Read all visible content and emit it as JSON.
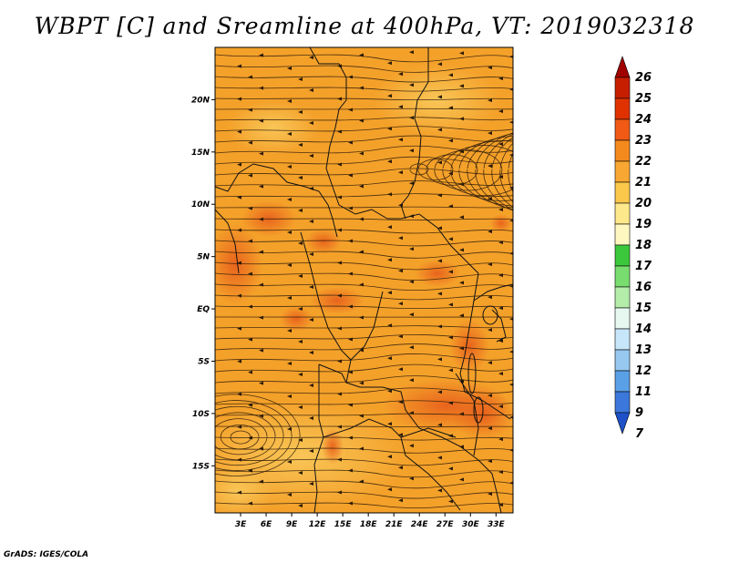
{
  "title": "WBPT [C] and Sreamline at 400hPa, VT: 2019032318",
  "credit": "GrADS: IGES/COLA",
  "map": {
    "lat_labels": [
      "20N",
      "15N",
      "10N",
      "5N",
      "EQ",
      "5S",
      "10S",
      "15S"
    ],
    "lat_values": [
      20,
      15,
      10,
      5,
      0,
      -5,
      -10,
      -15
    ],
    "lon_labels": [
      "3E",
      "6E",
      "9E",
      "12E",
      "15E",
      "18E",
      "21E",
      "24E",
      "27E",
      "30E",
      "33E"
    ],
    "lon_values": [
      3,
      6,
      9,
      12,
      15,
      18,
      21,
      24,
      27,
      30,
      33
    ],
    "extent": {
      "lon_min": 0,
      "lon_max": 35,
      "lat_min": -19.5,
      "lat_max": 25
    }
  },
  "colorbar": {
    "labels": [
      "26",
      "25",
      "24",
      "23",
      "22",
      "21",
      "20",
      "19",
      "18",
      "17",
      "16",
      "15",
      "14",
      "13",
      "12",
      "11",
      "9",
      "7"
    ],
    "colors": [
      "#a00000",
      "#c81e00",
      "#e03200",
      "#f05a14",
      "#f48a1e",
      "#f8a832",
      "#fcc84c",
      "#fde88c",
      "#fef8c0",
      "#3cc83c",
      "#78dc6e",
      "#b4ecaa",
      "#e6f8f0",
      "#c8e6fa",
      "#96c8f0",
      "#5aa0e6",
      "#3c78dc",
      "#1e50c8"
    ]
  }
}
